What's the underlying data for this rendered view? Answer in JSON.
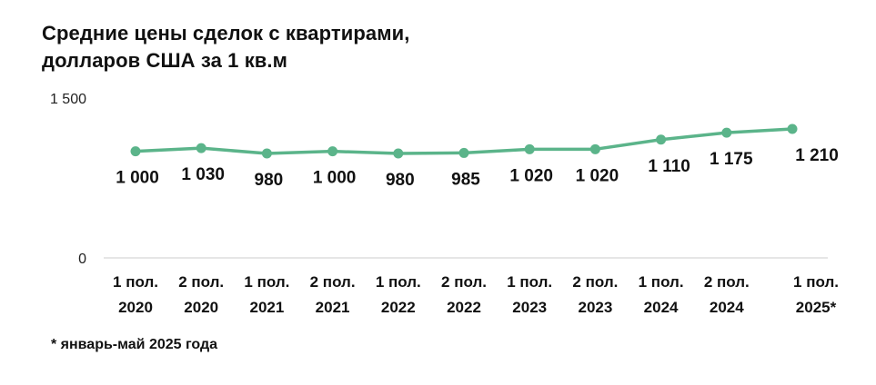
{
  "chart_data": {
    "type": "line",
    "title_lines": [
      "Средние цены сделок с квартирами,",
      "долларов США за 1 кв.м"
    ],
    "categories": [
      [
        "1 пол.",
        "2020"
      ],
      [
        "2 пол.",
        "2020"
      ],
      [
        "1 пол.",
        "2021"
      ],
      [
        "2 пол.",
        "2021"
      ],
      [
        "1 пол.",
        "2022"
      ],
      [
        "2 пол.",
        "2022"
      ],
      [
        "1 пол.",
        "2023"
      ],
      [
        "2 пол.",
        "2023"
      ],
      [
        "1 пол.",
        "2024"
      ],
      [
        "2 пол.",
        "2024"
      ],
      [
        "1 пол.",
        "2025*"
      ]
    ],
    "series": [
      {
        "values": [
          1000,
          1030,
          980,
          1000,
          980,
          985,
          1020,
          1020,
          1110,
          1175,
          1210
        ],
        "labels": [
          "1 000",
          "1 030",
          "980",
          "1 000",
          "980",
          "985",
          "1 020",
          "1 020",
          "1 110",
          "1 175",
          "1 210"
        ],
        "color": "#5bb48a"
      }
    ],
    "yticks": [
      {
        "value": 0,
        "label": "0"
      },
      {
        "value": 1500,
        "label": "1 500"
      }
    ],
    "ylim": [
      0,
      1500
    ],
    "grid": false,
    "axis_color": "#cccccc",
    "footnote": "* январь-май 2025 года"
  }
}
